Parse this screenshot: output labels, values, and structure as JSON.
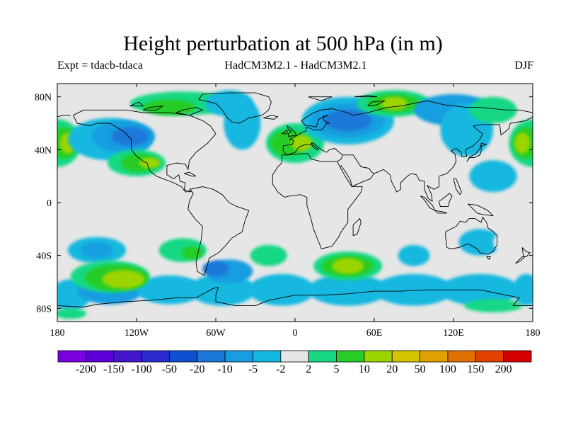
{
  "title": "Height perturbation at 500 hPa (in m)",
  "expt_label": "Expt = tdacb-tdaca",
  "model_label": "HadCM3M2.1 - HadCM3M2.1",
  "season_label": "DJF",
  "map": {
    "projection": "cylindrical equidistant",
    "lon_range": [
      -180,
      180
    ],
    "lat_range": [
      -90,
      90
    ],
    "lon_ticks": [
      {
        "lon": -180,
        "label": "180"
      },
      {
        "lon": -120,
        "label": "120W"
      },
      {
        "lon": -60,
        "label": "60W"
      },
      {
        "lon": 0,
        "label": "0"
      },
      {
        "lon": 60,
        "label": "60E"
      },
      {
        "lon": 120,
        "label": "120E"
      },
      {
        "lon": 180,
        "label": "180"
      }
    ],
    "lat_ticks": [
      {
        "lat": 80,
        "label": "80N"
      },
      {
        "lat": 40,
        "label": "40N"
      },
      {
        "lat": 0,
        "label": "0"
      },
      {
        "lat": -40,
        "label": "40S"
      },
      {
        "lat": -80,
        "label": "80S"
      }
    ],
    "background_color": "#e6e6e6"
  },
  "colorbar": {
    "colors": [
      "#7a00e0",
      "#5c00d8",
      "#4416cc",
      "#2a2acc",
      "#1050d0",
      "#1a78d8",
      "#189ee0",
      "#12b8e0",
      "#e6e6e6",
      "#18d884",
      "#28cc28",
      "#9cd400",
      "#d4c400",
      "#e0a000",
      "#e07000",
      "#e04000",
      "#d40000"
    ],
    "labels": [
      "-200",
      "-150",
      "-100",
      "-50",
      "-20",
      "-10",
      "-5",
      "-2",
      "2",
      "5",
      "10",
      "20",
      "50",
      "100",
      "150",
      "200"
    ]
  }
}
